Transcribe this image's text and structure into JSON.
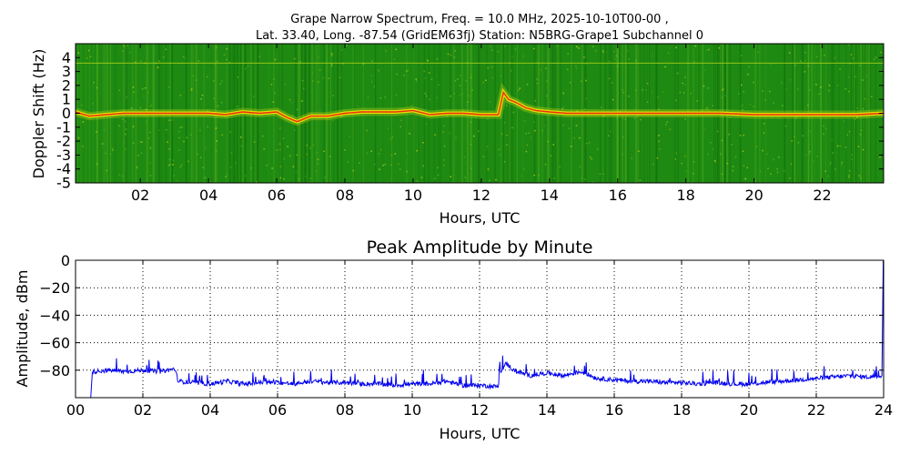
{
  "title": {
    "line1": "Grape Narrow Spectrum, Freq. = 10.0 MHz, 2025-10-10T00-00 ,",
    "line2": "Lat.  33.40, Long. -87.54 (GridEM63fj) Station: N5BRG-Grape1 Subchannel 0"
  },
  "colors": {
    "spectrogram_background": "#1e8a12",
    "spectrogram_signal": "#f5e400",
    "spectrogram_peak": "#e83010",
    "amplitude_line": "#0000ee"
  },
  "chart_data": [
    {
      "type": "heatmap",
      "name": "spectrogram",
      "xlabel": "Hours, UTC",
      "ylabel": "Doppler Shift (Hz)",
      "xlim": [
        0.1,
        23.8
      ],
      "ylim": [
        -5,
        5
      ],
      "x_ticks": [
        "02",
        "04",
        "06",
        "08",
        "10",
        "12",
        "14",
        "16",
        "18",
        "20",
        "22"
      ],
      "x_tick_values": [
        2,
        4,
        6,
        8,
        10,
        12,
        14,
        16,
        18,
        20,
        22
      ],
      "y_ticks": [
        "4",
        "3",
        "2",
        "1",
        "0",
        "-1",
        "-2",
        "-3",
        "-4",
        "-5"
      ],
      "y_tick_values": [
        4,
        3,
        2,
        1,
        0,
        -1,
        -2,
        -3,
        -4,
        -5
      ],
      "grid": false,
      "doppler_trace": {
        "x": [
          0.1,
          0.5,
          1,
          1.5,
          2,
          2.5,
          3,
          3.5,
          4,
          4.5,
          5,
          5.5,
          6,
          6.3,
          6.6,
          7,
          7.5,
          8,
          8.5,
          9,
          9.5,
          10,
          10.5,
          11,
          11.5,
          12,
          12.5,
          12.65,
          12.8,
          13,
          13.3,
          13.6,
          14,
          14.5,
          15,
          16,
          17,
          18,
          19,
          20,
          21,
          22,
          23,
          23.8
        ],
        "y": [
          0.1,
          -0.2,
          -0.1,
          0.0,
          0.0,
          0.0,
          0.0,
          0.0,
          0.0,
          -0.1,
          0.1,
          0.0,
          0.1,
          -0.3,
          -0.6,
          -0.2,
          -0.2,
          0.0,
          0.1,
          0.1,
          0.1,
          0.2,
          -0.1,
          0.0,
          0.0,
          -0.1,
          -0.1,
          1.5,
          1.0,
          0.8,
          0.4,
          0.2,
          0.1,
          0.0,
          0.0,
          0.0,
          0.0,
          0.0,
          0.0,
          -0.1,
          -0.1,
          -0.1,
          -0.1,
          0.0
        ]
      },
      "constant_line_hz": 3.6
    },
    {
      "type": "line",
      "title": "Peak Amplitude by Minute",
      "xlabel": "Hours, UTC",
      "ylabel": "Amplitude, dBm",
      "xlim": [
        0,
        24
      ],
      "ylim": [
        -100,
        0
      ],
      "x_ticks": [
        "00",
        "02",
        "04",
        "06",
        "08",
        "10",
        "12",
        "14",
        "16",
        "18",
        "20",
        "22",
        "24"
      ],
      "x_tick_values": [
        0,
        2,
        4,
        6,
        8,
        10,
        12,
        14,
        16,
        18,
        20,
        22,
        24
      ],
      "y_ticks": [
        "0",
        "−20",
        "−40",
        "−60",
        "−80"
      ],
      "y_tick_values": [
        0,
        -20,
        -40,
        -60,
        -80
      ],
      "grid": true,
      "series": [
        {
          "x": [
            0,
            0.35,
            0.45,
            0.5,
            1,
            1.5,
            2,
            2.5,
            2.95,
            3.05,
            3.5,
            4,
            4.5,
            5,
            5.5,
            6,
            6.5,
            7,
            7.5,
            8,
            8.5,
            9,
            9.5,
            10,
            10.5,
            11,
            11.5,
            12,
            12.55,
            12.62,
            12.8,
            13,
            13.5,
            14,
            14.5,
            15,
            15.5,
            16,
            16.5,
            17,
            17.5,
            18,
            18.5,
            19,
            19.5,
            20,
            20.5,
            21,
            21.5,
            22,
            22.5,
            23,
            23.5,
            23.95,
            23.99
          ],
          "y": [
            -100,
            -100,
            -100,
            -81,
            -80,
            -81,
            -80,
            -81,
            -79,
            -88,
            -89,
            -90,
            -88,
            -90,
            -89,
            -89,
            -90,
            -88,
            -89,
            -89,
            -90,
            -90,
            -91,
            -90,
            -90,
            -88,
            -91,
            -91,
            -92,
            -81,
            -75,
            -80,
            -84,
            -82,
            -84,
            -81,
            -86,
            -87,
            -88,
            -88,
            -89,
            -89,
            -90,
            -89,
            -90,
            -90,
            -89,
            -88,
            -87,
            -86,
            -85,
            -84,
            -85,
            -84,
            0
          ]
        }
      ]
    }
  ]
}
